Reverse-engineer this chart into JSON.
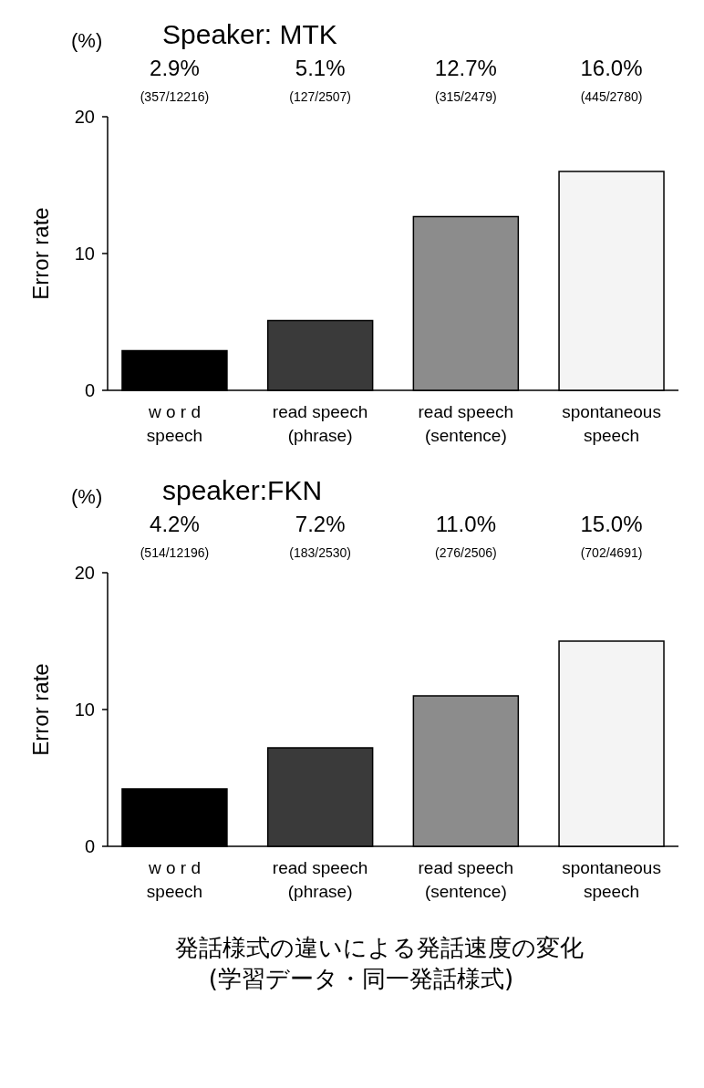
{
  "chart_data": [
    {
      "type": "bar",
      "title": "Speaker: MTK",
      "ylabel": "Error rate",
      "annotations": [
        "(%)"
      ],
      "categories": [
        "w o r d\nspeech",
        "read  speech\n(phrase)",
        "read  speech\n(sentence)",
        "spontaneous\nspeech"
      ],
      "values": [
        2.9,
        5.1,
        12.7,
        16.0
      ],
      "colors": [
        "#000000",
        "#3a3a3a",
        "#8c8c8c",
        "#f4f4f4"
      ],
      "value_labels": [
        "2.9%\n(357/12216)",
        "5.1%\n(127/2507)",
        "12.7%\n(315/2479)",
        "16.0%\n(445/2780)"
      ],
      "ylim": [
        0,
        20
      ],
      "yticks": [
        0,
        10,
        20
      ]
    },
    {
      "type": "bar",
      "title": "speaker:FKN",
      "ylabel": "Error rate",
      "annotations": [
        "(%)"
      ],
      "categories": [
        "w o r d\nspeech",
        "read  speech\n(phrase)",
        "read  speech\n(sentence)",
        "spontaneous\nspeech"
      ],
      "values": [
        4.2,
        7.2,
        11.0,
        15.0
      ],
      "colors": [
        "#000000",
        "#3a3a3a",
        "#8c8c8c",
        "#f4f4f4"
      ],
      "value_labels": [
        "4.2%\n(514/12196)",
        "7.2%\n(183/2530)",
        "11.0%\n(276/2506)",
        "15.0%\n(702/4691)"
      ],
      "ylim": [
        0,
        20
      ],
      "yticks": [
        0,
        10,
        20
      ]
    },
    {
      "type": "other",
      "title": "発話様式の違いによる発話速度の変化",
      "subtitle": "(学習データ・同一発話様式)"
    }
  ]
}
